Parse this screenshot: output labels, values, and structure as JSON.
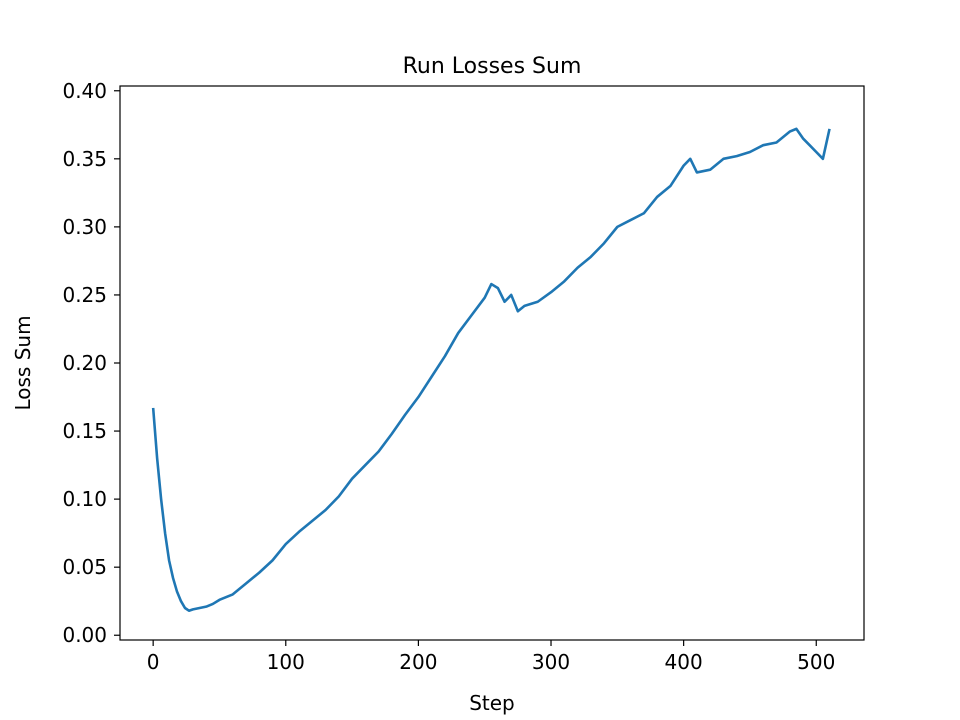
{
  "chart_data": {
    "type": "line",
    "title": "Run Losses Sum",
    "xlabel": "Step",
    "ylabel": "Loss Sum",
    "xlim": [
      -25,
      536
    ],
    "ylim": [
      -0.0035,
      0.4035
    ],
    "x_ticks": [
      0,
      100,
      200,
      300,
      400,
      500
    ],
    "x_tick_labels": [
      "0",
      "100",
      "200",
      "300",
      "400",
      "500"
    ],
    "y_ticks": [
      0.0,
      0.05,
      0.1,
      0.15,
      0.2,
      0.25,
      0.3,
      0.35,
      0.4
    ],
    "y_tick_labels": [
      "0.00",
      "0.05",
      "0.10",
      "0.15",
      "0.20",
      "0.25",
      "0.30",
      "0.35",
      "0.40"
    ],
    "grid": false,
    "series": [
      {
        "color": "#1f77b4",
        "x": [
          0,
          3,
          6,
          9,
          12,
          15,
          18,
          21,
          24,
          27,
          30,
          35,
          40,
          45,
          50,
          60,
          70,
          80,
          90,
          100,
          110,
          120,
          130,
          140,
          150,
          160,
          170,
          180,
          190,
          200,
          210,
          220,
          230,
          240,
          250,
          255,
          260,
          265,
          270,
          275,
          280,
          290,
          300,
          310,
          320,
          330,
          340,
          350,
          360,
          370,
          380,
          390,
          400,
          405,
          410,
          420,
          430,
          440,
          450,
          460,
          470,
          480,
          485,
          490,
          495,
          500,
          505,
          510
        ],
        "y": [
          0.167,
          0.13,
          0.1,
          0.075,
          0.055,
          0.042,
          0.032,
          0.025,
          0.02,
          0.018,
          0.019,
          0.02,
          0.021,
          0.023,
          0.026,
          0.03,
          0.038,
          0.046,
          0.055,
          0.067,
          0.076,
          0.084,
          0.092,
          0.102,
          0.115,
          0.125,
          0.135,
          0.148,
          0.162,
          0.175,
          0.19,
          0.205,
          0.222,
          0.235,
          0.248,
          0.258,
          0.255,
          0.245,
          0.25,
          0.238,
          0.242,
          0.245,
          0.252,
          0.26,
          0.27,
          0.278,
          0.288,
          0.3,
          0.305,
          0.31,
          0.322,
          0.33,
          0.345,
          0.35,
          0.34,
          0.342,
          0.35,
          0.352,
          0.355,
          0.36,
          0.362,
          0.37,
          0.372,
          0.365,
          0.36,
          0.355,
          0.35,
          0.372
        ]
      }
    ]
  }
}
